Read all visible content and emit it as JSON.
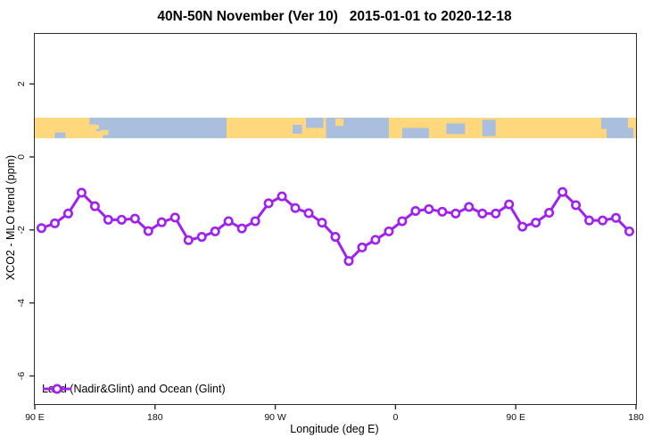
{
  "title": "40N-50N November (Ver 10)   2015-01-01 to 2020-12-18",
  "colors": {
    "line": "#A020F0",
    "marker_fill": "#ffffff",
    "land": "#FFD87E",
    "ocean": "#A9BFDD",
    "axis": "#2d2d2d"
  },
  "legend": {
    "label": "Land (Nadir&Glint) and Ocean (Glint)"
  },
  "chart_data": {
    "type": "line",
    "title": "40N-50N November (Ver 10)   2015-01-01 to 2020-12-18",
    "xlabel": "Longitude (deg E)",
    "ylabel": "XCO2 - MLO trend (ppm)",
    "xlim": [
      90,
      540
    ],
    "ylim": [
      -6.77,
      3.37
    ],
    "grid": false,
    "legend_position": "bottom-left",
    "x_ticks": [
      {
        "deg": 90,
        "label": "90 E"
      },
      {
        "deg": 180,
        "label": "180"
      },
      {
        "deg": 270,
        "label": "90 W"
      },
      {
        "deg": 360,
        "label": "0"
      },
      {
        "deg": 450,
        "label": "90 E"
      },
      {
        "deg": 540,
        "label": "180"
      }
    ],
    "y_ticks": [
      {
        "value": 2,
        "label": "2"
      },
      {
        "value": 0,
        "label": "0"
      },
      {
        "value": -2,
        "label": "-2"
      },
      {
        "value": -4,
        "label": "-4"
      },
      {
        "value": -6,
        "label": "-6"
      }
    ],
    "series": [
      {
        "name": "Land (Nadir&Glint) and Ocean (Glint)",
        "x_axis_deg": [
          95,
          105,
          115,
          125,
          135,
          145,
          155,
          165,
          175,
          185,
          195,
          205,
          215,
          225,
          235,
          245,
          255,
          265,
          275,
          285,
          295,
          305,
          315,
          325,
          335,
          345,
          355,
          365,
          375,
          385,
          395,
          405,
          415,
          425,
          435,
          445,
          455,
          465,
          475,
          485,
          495,
          505,
          515,
          525,
          535
        ],
        "values": [
          -1.95,
          -1.82,
          -1.55,
          -0.98,
          -1.35,
          -1.72,
          -1.72,
          -1.69,
          -2.03,
          -1.79,
          -1.66,
          -2.28,
          -2.19,
          -2.04,
          -1.76,
          -1.96,
          -1.76,
          -1.27,
          -1.08,
          -1.4,
          -1.54,
          -1.8,
          -2.19,
          -2.85,
          -2.48,
          -2.27,
          -2.04,
          -1.76,
          -1.48,
          -1.43,
          -1.5,
          -1.55,
          -1.37,
          -1.55,
          -1.55,
          -1.3,
          -1.91,
          -1.8,
          -1.53,
          -0.96,
          -1.32,
          -1.74,
          -1.74,
          -1.67,
          -2.04
        ]
      }
    ],
    "map_band": {
      "description": "40N-50N latitude strip world map: land in orange, ocean in blue",
      "ppm_top": 1.075,
      "ppm_bottom": 0.513,
      "ocean_rects_deg_frac": [
        [
          131,
          136,
          0,
          0.33
        ],
        [
          136,
          141,
          0,
          0.66
        ],
        [
          141,
          147,
          0,
          1
        ],
        [
          147,
          233.5,
          0,
          1
        ],
        [
          105,
          113,
          0.72,
          1
        ],
        [
          283,
          290,
          0.35,
          0.78
        ],
        [
          293,
          306,
          0,
          0.5
        ],
        [
          308,
          355,
          0,
          1
        ],
        [
          365,
          385,
          0.5,
          1
        ],
        [
          398,
          412,
          0.28,
          0.8
        ],
        [
          425,
          435,
          0.1,
          0.9
        ],
        [
          514,
          518,
          0,
          0.55
        ],
        [
          518,
          534,
          0,
          1
        ],
        [
          534,
          538,
          0.5,
          1
        ]
      ],
      "land_islands_deg_frac": [
        [
          139,
          145,
          0.6,
          0.85
        ],
        [
          134.5,
          138,
          0.35,
          0.55
        ],
        [
          315,
          321,
          0.05,
          0.4
        ]
      ]
    }
  }
}
